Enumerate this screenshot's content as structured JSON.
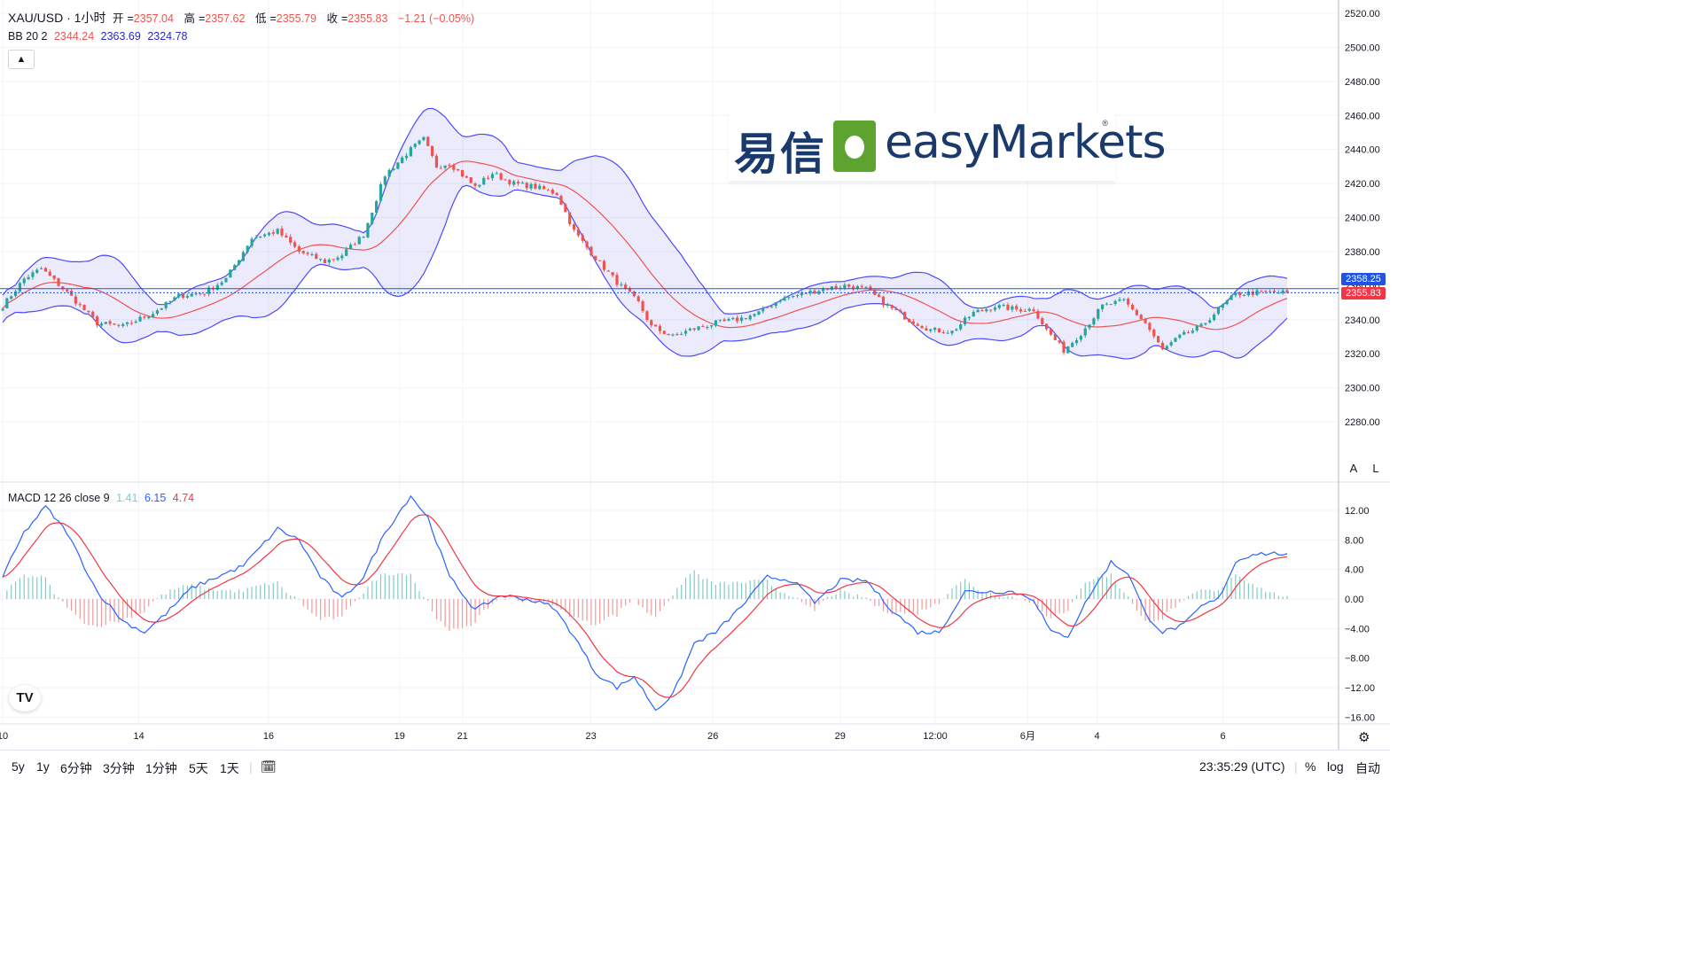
{
  "symbol_title": "XAU/USD · 1小时",
  "ohlc": {
    "open_label": "开",
    "open": "2357.04",
    "high_label": "高",
    "high": "2357.62",
    "low_label": "低",
    "low": "2355.79",
    "close_label": "收",
    "close": "2355.83",
    "change": "−1.21 (−0.05%)"
  },
  "bb_legend": {
    "label": "BB 20 2",
    "basis": "2344.24",
    "upper": "2363.69",
    "lower": "2324.78"
  },
  "macd_legend": {
    "label": "MACD 12 26 close 9",
    "hist": "1.41",
    "macd": "6.15",
    "signal": "4.74"
  },
  "collapse_icon": "chevron-up-icon",
  "logo": {
    "cn": "易信",
    "en": "easyMarkets",
    "reg": "®"
  },
  "price_badges": {
    "upper": "2358.25",
    "last": "2355.83"
  },
  "scale_buttons": {
    "auto": "A",
    "log": "L"
  },
  "bottom_bar": {
    "ranges": [
      "5y",
      "1y",
      "6分钟",
      "3分钟",
      "1分钟",
      "5天",
      "1天"
    ],
    "time": "23:35:29 (UTC)",
    "percent": "%",
    "log": "log",
    "auto": "自动"
  },
  "colors": {
    "up": "#26a69a",
    "down": "#ef5350",
    "basis": "#ef5350",
    "band": "#4a4aff",
    "band_fill": "rgba(90,90,230,0.12)",
    "macd": "#2962ff",
    "signal": "#f23645",
    "hist_up": "#80cbc4",
    "hist_down": "#ef9a9a",
    "grid": "#f0f3fa",
    "last_price": "#1e53e5",
    "last_badge": "#f23645"
  },
  "chart_data": [
    {
      "type": "candlestick",
      "title": "XAU/USD · 1小时",
      "y_ticks": [
        2280,
        2300,
        2320,
        2340,
        2360,
        2380,
        2400,
        2420,
        2440,
        2460,
        2480,
        2500,
        2520
      ],
      "ylim": [
        2262,
        2524
      ],
      "x_ticks": [
        "10",
        "14",
        "16",
        "19",
        "21",
        "23",
        "26",
        "29",
        "12:00",
        "6月",
        "4",
        "6"
      ],
      "x_tick_pos": [
        0.0,
        10.6,
        20.7,
        30.9,
        35.8,
        45.8,
        55.3,
        65.2,
        72.6,
        79.8,
        85.2,
        95.0
      ],
      "n_bars": 300,
      "key_points": [
        [
          0,
          2348
        ],
        [
          5,
          2364
        ],
        [
          9,
          2370
        ],
        [
          15,
          2356
        ],
        [
          22,
          2338
        ],
        [
          28,
          2336
        ],
        [
          35,
          2344
        ],
        [
          41,
          2354
        ],
        [
          47,
          2356
        ],
        [
          52,
          2364
        ],
        [
          58,
          2388
        ],
        [
          64,
          2392
        ],
        [
          69,
          2380
        ],
        [
          75,
          2374
        ],
        [
          79,
          2378
        ],
        [
          84,
          2390
        ],
        [
          89,
          2425
        ],
        [
          95,
          2440
        ],
        [
          98,
          2446
        ],
        [
          101,
          2430
        ],
        [
          104,
          2432
        ],
        [
          107,
          2425
        ],
        [
          110,
          2418
        ],
        [
          114,
          2426
        ],
        [
          119,
          2420
        ],
        [
          124,
          2418
        ],
        [
          129,
          2414
        ],
        [
          133,
          2392
        ],
        [
          138,
          2376
        ],
        [
          143,
          2362
        ],
        [
          148,
          2350
        ],
        [
          151,
          2336
        ],
        [
          156,
          2330
        ],
        [
          160,
          2334
        ],
        [
          166,
          2338
        ],
        [
          171,
          2340
        ],
        [
          176,
          2344
        ],
        [
          181,
          2352
        ],
        [
          186,
          2355
        ],
        [
          191,
          2358
        ],
        [
          196,
          2360
        ],
        [
          201,
          2358
        ],
        [
          206,
          2348
        ],
        [
          211,
          2340
        ],
        [
          216,
          2334
        ],
        [
          221,
          2333
        ],
        [
          226,
          2344
        ],
        [
          231,
          2348
        ],
        [
          236,
          2346
        ],
        [
          240,
          2346
        ],
        [
          243,
          2334
        ],
        [
          247,
          2322
        ],
        [
          251,
          2332
        ],
        [
          256,
          2348
        ],
        [
          261,
          2351
        ],
        [
          266,
          2338
        ],
        [
          270,
          2322
        ],
        [
          274,
          2330
        ],
        [
          279,
          2336
        ],
        [
          283,
          2346
        ],
        [
          287,
          2355
        ],
        [
          292,
          2356
        ]
      ],
      "last_price": 2355.83,
      "upper_line": 2358.25
    },
    {
      "type": "macd",
      "title": "MACD 12 26 close 9",
      "y_ticks": [
        -16,
        -12,
        -8,
        -4,
        0,
        4,
        8,
        12
      ],
      "ylim": [
        -17,
        15
      ],
      "macd_key_points": [
        [
          0,
          3
        ],
        [
          5,
          9
        ],
        [
          10,
          12.5
        ],
        [
          15,
          9
        ],
        [
          22,
          1
        ],
        [
          28,
          -3
        ],
        [
          33,
          -4.5
        ],
        [
          38,
          -2
        ],
        [
          44,
          1.5
        ],
        [
          50,
          3
        ],
        [
          56,
          4.5
        ],
        [
          60,
          7
        ],
        [
          64,
          9.5
        ],
        [
          69,
          8
        ],
        [
          74,
          3
        ],
        [
          79,
          0
        ],
        [
          84,
          3
        ],
        [
          89,
          9
        ],
        [
          95,
          14
        ],
        [
          99,
          11
        ],
        [
          104,
          3
        ],
        [
          110,
          -1.5
        ],
        [
          116,
          0.5
        ],
        [
          122,
          0
        ],
        [
          128,
          -1
        ],
        [
          133,
          -5
        ],
        [
          138,
          -10
        ],
        [
          143,
          -12
        ],
        [
          147,
          -10.5
        ],
        [
          152,
          -15
        ],
        [
          156,
          -13
        ],
        [
          161,
          -6
        ],
        [
          166,
          -4.5
        ],
        [
          172,
          -1
        ],
        [
          178,
          3
        ],
        [
          184,
          2.5
        ],
        [
          189,
          -0.5
        ],
        [
          195,
          2.5
        ],
        [
          201,
          2.5
        ],
        [
          207,
          -1.5
        ],
        [
          213,
          -4.5
        ],
        [
          218,
          -4.5
        ],
        [
          224,
          1
        ],
        [
          229,
          1
        ],
        [
          235,
          1
        ],
        [
          240,
          0
        ],
        [
          244,
          -4.5
        ],
        [
          248,
          -5
        ],
        [
          253,
          0.5
        ],
        [
          258,
          5
        ],
        [
          262,
          3.5
        ],
        [
          266,
          -2
        ],
        [
          270,
          -4.5
        ],
        [
          275,
          -3.5
        ],
        [
          279,
          -1
        ],
        [
          283,
          0
        ],
        [
          287,
          5
        ],
        [
          291,
          6.15
        ]
      ],
      "last_values": {
        "macd": 6.15,
        "signal": 4.74,
        "histogram": 1.41
      }
    }
  ]
}
